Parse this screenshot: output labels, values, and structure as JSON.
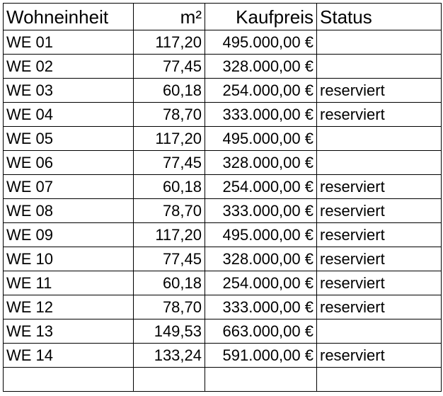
{
  "headers": {
    "unit": "Wohneinheit",
    "area": "m²",
    "price": "Kaufpreis",
    "status": "Status"
  },
  "rows": [
    {
      "unit": "WE 01",
      "area": "117,20",
      "price": "495.000,00 €",
      "status": ""
    },
    {
      "unit": "WE 02",
      "area": "77,45",
      "price": "328.000,00 €",
      "status": ""
    },
    {
      "unit": "WE 03",
      "area": "60,18",
      "price": "254.000,00 €",
      "status": "reserviert"
    },
    {
      "unit": "WE 04",
      "area": "78,70",
      "price": "333.000,00 €",
      "status": "reserviert"
    },
    {
      "unit": "WE 05",
      "area": "117,20",
      "price": "495.000,00 €",
      "status": ""
    },
    {
      "unit": "WE 06",
      "area": "77,45",
      "price": "328.000,00 €",
      "status": ""
    },
    {
      "unit": "WE 07",
      "area": "60,18",
      "price": "254.000,00 €",
      "status": "reserviert"
    },
    {
      "unit": "WE 08",
      "area": "78,70",
      "price": "333.000,00 €",
      "status": "reserviert"
    },
    {
      "unit": "WE 09",
      "area": "117,20",
      "price": "495.000,00 €",
      "status": "reserviert"
    },
    {
      "unit": "WE 10",
      "area": "77,45",
      "price": "328.000,00 €",
      "status": "reserviert"
    },
    {
      "unit": "WE 11",
      "area": "60,18",
      "price": "254.000,00 €",
      "status": "reserviert"
    },
    {
      "unit": "WE 12",
      "area": "78,70",
      "price": "333.000,00 €",
      "status": "reserviert"
    },
    {
      "unit": "WE 13",
      "area": "149,53",
      "price": "663.000,00 €",
      "status": ""
    },
    {
      "unit": "WE 14",
      "area": "133,24",
      "price": "591.000,00 €",
      "status": "reserviert"
    }
  ]
}
